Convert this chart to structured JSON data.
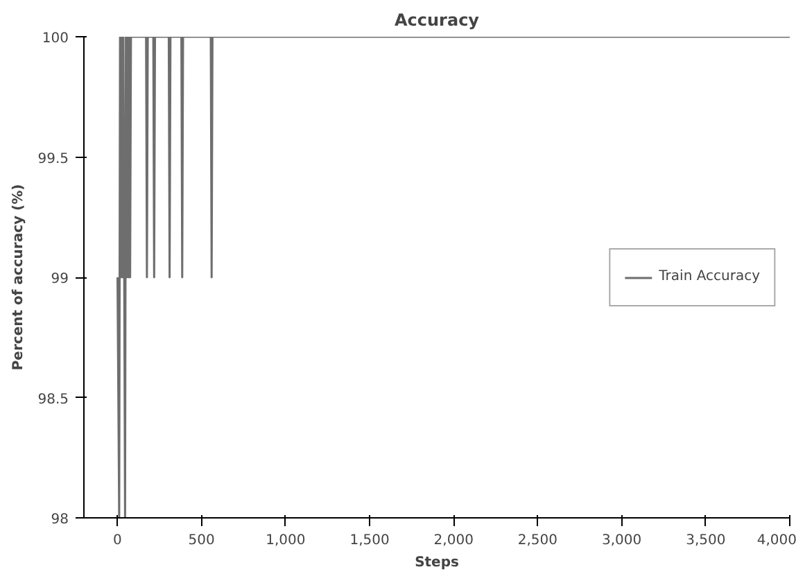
{
  "chart_data": {
    "type": "line",
    "title": "Accuracy",
    "xlabel": "Steps",
    "ylabel": "Percent of accuracy (%)",
    "x": [
      0,
      10,
      15,
      20,
      25,
      30,
      35,
      45,
      50,
      55,
      60,
      65,
      70,
      75,
      80,
      170,
      175,
      180,
      213,
      218,
      223,
      305,
      310,
      315,
      380,
      385,
      390,
      555,
      560,
      565,
      4000
    ],
    "series": [
      {
        "name": "Train Accuracy",
        "color": "#6e6e6e",
        "values": [
          99,
          98,
          100,
          99,
          100,
          99,
          100,
          98,
          100,
          99,
          100,
          99,
          100,
          99,
          100,
          100,
          99,
          100,
          100,
          99,
          100,
          100,
          99,
          100,
          100,
          99,
          100,
          100,
          99,
          100,
          100
        ]
      }
    ],
    "xlim": [
      -200,
      4000
    ],
    "ylim": [
      98,
      100
    ],
    "xticks": [
      0,
      500,
      {
        "value": 1000,
        "label": "1,000"
      },
      {
        "value": 1500,
        "label": "1,500"
      },
      {
        "value": 2000,
        "label": "2,000"
      },
      {
        "value": 2500,
        "label": "2,500"
      },
      {
        "value": 3000,
        "label": "3,000"
      },
      {
        "value": 3500,
        "label": "3,500"
      },
      {
        "value": 4000,
        "label": "4,000"
      }
    ],
    "yticks": [
      98,
      98.5,
      99,
      99.5,
      100
    ],
    "grid": false,
    "legend": "right",
    "marker": "none",
    "line_style": "solid"
  }
}
